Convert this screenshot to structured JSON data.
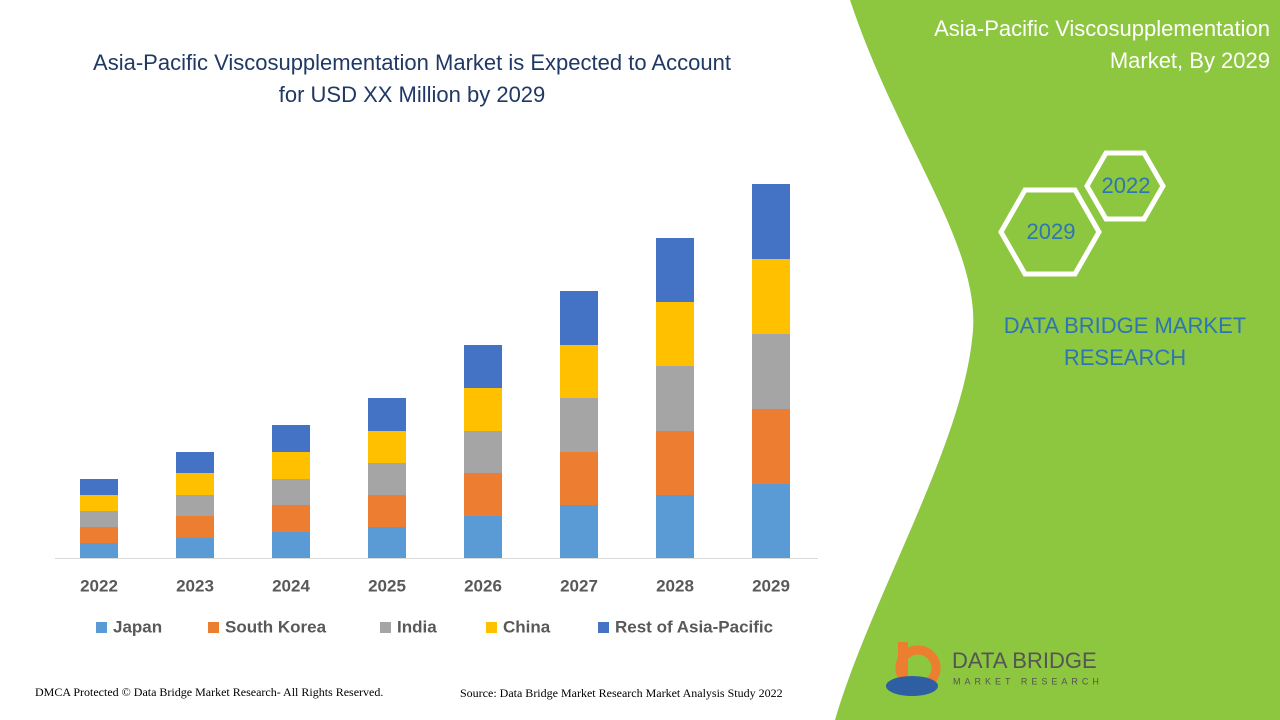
{
  "chart_data": {
    "type": "stacked_bar",
    "title": "Asia-Pacific Viscosupplementation Market is Expected to Account for USD XX Million by 2029",
    "categories": [
      "2022",
      "2023",
      "2024",
      "2025",
      "2026",
      "2027",
      "2028",
      "2029"
    ],
    "series": [
      {
        "name": "Japan",
        "color": "#5b9bd5",
        "values": [
          15,
          20,
          26,
          31,
          42,
          53,
          63,
          74
        ]
      },
      {
        "name": "South Korea",
        "color": "#ed7d31",
        "values": [
          16,
          22,
          27,
          32,
          43,
          53,
          64,
          75
        ]
      },
      {
        "name": "India",
        "color": "#a5a5a5",
        "values": [
          16,
          21,
          26,
          32,
          42,
          54,
          65,
          75
        ]
      },
      {
        "name": "China",
        "color": "#ffc000",
        "values": [
          16,
          22,
          27,
          32,
          43,
          53,
          64,
          75
        ]
      },
      {
        "name": "Rest of Asia-Pacific",
        "color": "#4472c4",
        "values": [
          16,
          21,
          27,
          33,
          43,
          54,
          64,
          75
        ]
      }
    ],
    "ylim": [
      0,
      400
    ],
    "grid": false,
    "legend": "bottom"
  },
  "panel": {
    "title": "Asia-Pacific Viscosupplementation Market, By 2029",
    "hex_top": "2022",
    "hex_bottom": "2029",
    "brand": "DATA BRIDGE MARKET RESEARCH"
  },
  "logo": {
    "name": "DATA BRIDGE",
    "tagline": "MARKET RESEARCH"
  },
  "footer": {
    "copyright": "DMCA Protected © Data Bridge Market Research- All Rights Reserved.",
    "source": "Source: Data Bridge Market Research Market Analysis Study 2022"
  }
}
